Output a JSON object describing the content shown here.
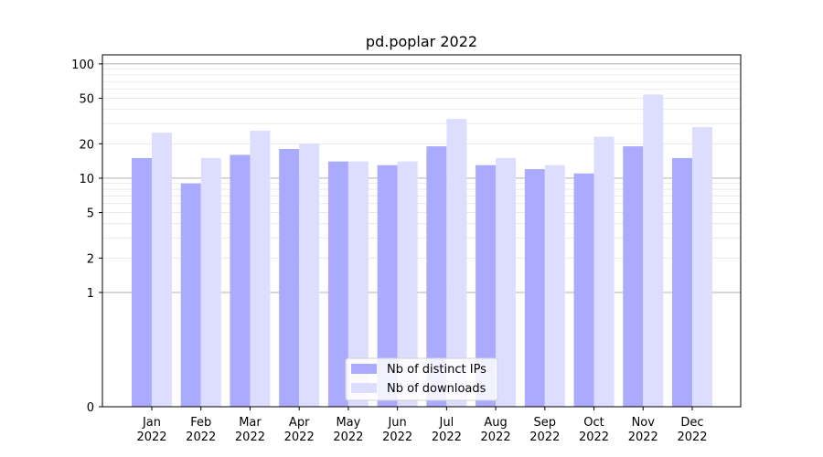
{
  "chart_data": {
    "type": "bar",
    "title": "pd.poplar 2022",
    "xlabel": "",
    "ylabel": "",
    "scale": "symlog",
    "categories": [
      [
        "Jan",
        "2022"
      ],
      [
        "Feb",
        "2022"
      ],
      [
        "Mar",
        "2022"
      ],
      [
        "Apr",
        "2022"
      ],
      [
        "May",
        "2022"
      ],
      [
        "Jun",
        "2022"
      ],
      [
        "Jul",
        "2022"
      ],
      [
        "Aug",
        "2022"
      ],
      [
        "Sep",
        "2022"
      ],
      [
        "Oct",
        "2022"
      ],
      [
        "Nov",
        "2022"
      ],
      [
        "Dec",
        "2022"
      ]
    ],
    "series": [
      {
        "name": "Nb of distinct IPs",
        "color": "#aaaaff",
        "values": [
          15,
          9,
          16,
          18,
          14,
          13,
          19,
          13,
          12,
          11,
          19,
          15
        ]
      },
      {
        "name": "Nb of downloads",
        "color": "#ddddff",
        "values": [
          25,
          15,
          26,
          20,
          14,
          14,
          33,
          15,
          13,
          23,
          54,
          28
        ]
      }
    ],
    "yticks": [
      "0",
      "1",
      "2",
      "5",
      "10",
      "20",
      "50",
      "100"
    ],
    "ylim": [
      0,
      120
    ],
    "legend": "bottom-center",
    "grid": true
  }
}
